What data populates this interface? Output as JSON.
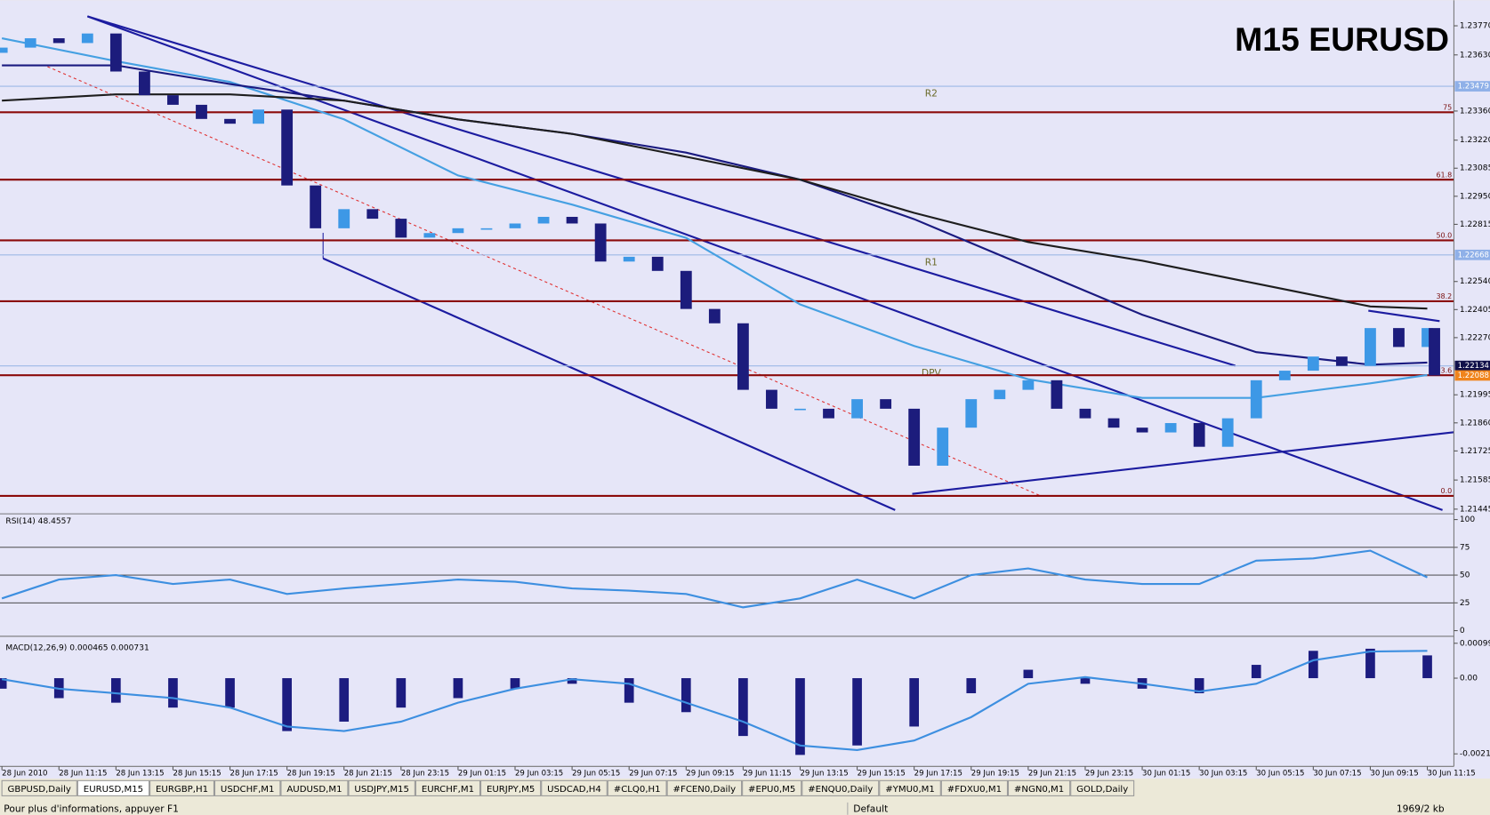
{
  "chart_data": [
    {
      "type": "candlestick",
      "title": "M15 EURUSD",
      "xlim": [
        -0.27,
        203.73
      ],
      "ylim": [
        1.21427,
        1.23884
      ],
      "xticks": [
        {
          "value": 0,
          "label": "28 Jun 2010"
        },
        {
          "value": 8,
          "label": "28 Jun 11:15"
        },
        {
          "value": 16,
          "label": "28 Jun 13:15"
        },
        {
          "value": 24,
          "label": "28 Jun 15:15"
        },
        {
          "value": 32,
          "label": "28 Jun 17:15"
        },
        {
          "value": 40,
          "label": "28 Jun 19:15"
        },
        {
          "value": 48,
          "label": "28 Jun 21:15"
        },
        {
          "value": 56,
          "label": "28 Jun 23:15"
        },
        {
          "value": 64,
          "label": "29 Jun 01:15"
        },
        {
          "value": 72,
          "label": "29 Jun 03:15"
        },
        {
          "value": 80,
          "label": "29 Jun 05:15"
        },
        {
          "value": 88,
          "label": "29 Jun 07:15"
        },
        {
          "value": 96,
          "label": "29 Jun 09:15"
        },
        {
          "value": 104,
          "label": "29 Jun 11:15"
        },
        {
          "value": 112,
          "label": "29 Jun 13:15"
        },
        {
          "value": 120,
          "label": "29 Jun 15:15"
        },
        {
          "value": 128,
          "label": "29 Jun 17:15"
        },
        {
          "value": 136,
          "label": "29 Jun 19:15"
        },
        {
          "value": 144,
          "label": "29 Jun 21:15"
        },
        {
          "value": 152,
          "label": "29 Jun 23:15"
        },
        {
          "value": 160,
          "label": "30 Jun 01:15"
        },
        {
          "value": 168,
          "label": "30 Jun 03:15"
        },
        {
          "value": 176,
          "label": "30 Jun 05:15"
        },
        {
          "value": 184,
          "label": "30 Jun 07:15"
        },
        {
          "value": 192,
          "label": "30 Jun 09:15"
        },
        {
          "value": 200,
          "label": "30 Jun 11:15"
        }
      ],
      "yticks": [
        {
          "value": 1.2377,
          "label": "1.23770"
        },
        {
          "value": 1.2363,
          "label": "1.23630"
        },
        {
          "value": 1.2336,
          "label": "1.23360"
        },
        {
          "value": 1.2322,
          "label": "1.23220"
        },
        1.23085,
        {
          "value": 1.2295,
          "label": "1.22950"
        },
        1.22815,
        {
          "value": 1.2254,
          "label": "1.22540"
        },
        1.22405,
        {
          "value": 1.2227,
          "label": "1.22270"
        },
        1.21995,
        {
          "value": 1.2186,
          "label": "1.21860"
        },
        1.21725,
        1.21585,
        1.21445
      ],
      "up_color": "#3d98e6",
      "down_color": "#1c1c7c",
      "x": [
        0,
        4,
        8,
        12,
        16,
        20,
        24,
        28,
        32,
        36,
        40,
        44,
        48,
        52,
        56,
        60,
        64,
        68,
        72,
        76,
        80,
        84,
        88,
        92,
        96,
        100,
        104,
        108,
        112,
        116,
        120,
        124,
        128,
        132,
        136,
        140,
        144,
        148,
        152,
        156,
        160,
        164,
        168,
        172,
        176,
        180,
        184,
        188,
        192,
        196,
        200,
        201
      ],
      "open": [
        1.2364,
        1.23665,
        1.2371,
        1.23687,
        1.23733,
        1.2355,
        1.23436,
        1.2339,
        1.23322,
        1.23299,
        1.23367,
        1.23002,
        1.22796,
        1.22888,
        1.22842,
        1.22751,
        1.22773,
        1.22796,
        1.22796,
        1.22819,
        1.22851,
        1.22819,
        1.22636,
        1.22659,
        1.22591,
        1.22408,
        1.22339,
        1.22019,
        1.21928,
        1.21928,
        1.21882,
        1.21974,
        1.21928,
        1.21654,
        1.21837,
        1.21974,
        1.22019,
        1.22065,
        1.21928,
        1.21882,
        1.21837,
        1.21814,
        1.21859,
        1.21745,
        1.21882,
        1.22065,
        1.22111,
        1.22179,
        1.22134,
        1.22316,
        1.22225,
        1.22316
      ],
      "close": [
        1.23665,
        1.2371,
        1.23687,
        1.23733,
        1.2355,
        1.23436,
        1.2339,
        1.23322,
        1.23299,
        1.23367,
        1.23002,
        1.22796,
        1.22888,
        1.22842,
        1.22751,
        1.22773,
        1.22796,
        1.22796,
        1.22819,
        1.22851,
        1.22819,
        1.22636,
        1.22659,
        1.22591,
        1.22408,
        1.22339,
        1.22019,
        1.21928,
        1.21928,
        1.21882,
        1.21974,
        1.21928,
        1.21654,
        1.21837,
        1.21974,
        1.22019,
        1.22065,
        1.21928,
        1.21882,
        1.21837,
        1.21814,
        1.21859,
        1.21745,
        1.21882,
        1.22065,
        1.22111,
        1.22179,
        1.22134,
        1.22316,
        1.22225,
        1.22316,
        1.22088
      ],
      "series": [
        {
          "color": "#45a0e2",
          "x": [
            0,
            16,
            32,
            48,
            64,
            80,
            96,
            112,
            128,
            144,
            160,
            176,
            192,
            200
          ],
          "values": [
            1.2371,
            1.236,
            1.235,
            1.2332,
            1.2305,
            1.2291,
            1.2275,
            1.2243,
            1.2223,
            1.2207,
            1.2198,
            1.2198,
            1.2205,
            1.2209
          ]
        },
        {
          "color": "#1a1a80",
          "x": [
            0,
            16,
            32,
            48,
            64,
            80,
            96,
            112,
            128,
            144,
            160,
            176,
            192,
            200
          ],
          "values": [
            1.2358,
            1.2358,
            1.2349,
            1.2341,
            1.2332,
            1.2325,
            1.2316,
            1.2303,
            1.2284,
            1.2261,
            1.2238,
            1.222,
            1.2214,
            1.2215
          ]
        },
        {
          "color": "#1e1e1e",
          "x": [
            0,
            16,
            32,
            48,
            64,
            80,
            96,
            112,
            128,
            144,
            160,
            176,
            192,
            200
          ],
          "values": [
            1.2341,
            1.2344,
            1.2344,
            1.2341,
            1.2332,
            1.2325,
            1.2314,
            1.2303,
            1.2287,
            1.2273,
            1.2264,
            1.2253,
            1.2242,
            1.2241
          ]
        }
      ],
      "fib_levels": [
        {
          "label": "75",
          "value": 1.23354
        },
        {
          "label": "61.8",
          "value": 1.2303
        },
        {
          "label": "50.0",
          "value": 1.22738
        },
        {
          "label": "38.2",
          "value": 1.22445
        },
        {
          "label": "23.6",
          "value": 1.22089
        },
        {
          "label": "0.0",
          "value": 1.21509
        }
      ],
      "fib_color": "#8b0a0a",
      "pivots": [
        {
          "label": "R2",
          "value": 1.23479
        },
        {
          "label": "R1",
          "value": 1.22668
        },
        {
          "label": "DPV",
          "value": 1.22134
        }
      ],
      "pivot_color": "#9db8e6",
      "price_tags": [
        {
          "value": 1.23479,
          "label": "1.23479",
          "color": "#8fb0e8"
        },
        {
          "value": 1.22668,
          "label": "1.22668",
          "color": "#8fb0e8"
        },
        {
          "value": 1.22134,
          "label": "1.22134",
          "color": "#10104a"
        },
        {
          "value": 1.22088,
          "label": "1.22088",
          "color": "#f0841c"
        }
      ]
    },
    {
      "type": "line",
      "title": "RSI(14) 48.4557",
      "xlim": [
        -0.27,
        203.73
      ],
      "ylim": [
        -3.4,
        104.3
      ],
      "yticks": [
        0,
        25,
        50,
        75,
        100
      ],
      "hlines": [
        25,
        50,
        75
      ],
      "series": [
        {
          "color": "#3d8fe0",
          "x": [
            0,
            8,
            16,
            24,
            32,
            40,
            48,
            56,
            64,
            72,
            80,
            88,
            96,
            104,
            112,
            120,
            128,
            136,
            144,
            152,
            160,
            168,
            176,
            184,
            192,
            200
          ],
          "values": [
            29,
            46,
            50,
            42,
            46,
            33,
            38,
            42,
            46,
            44,
            38,
            36,
            33,
            21,
            29,
            46,
            29,
            50,
            56,
            46,
            42,
            42,
            63,
            65,
            72,
            48
          ]
        }
      ]
    },
    {
      "type": "macd",
      "title": "MACD(12,26,9) 0.000465 0.000731",
      "xlim": [
        -0.27,
        203.73
      ],
      "ylim": [
        -0.00249,
        0.00114
      ],
      "yticks": [
        -0.00216,
        {
          "value": 0,
          "label": "0.00"
        },
        0.000996
      ],
      "color": "#1c1c80",
      "x": [
        0,
        8,
        16,
        24,
        32,
        40,
        48,
        56,
        64,
        72,
        80,
        88,
        96,
        104,
        112,
        120,
        128,
        136,
        144,
        152,
        160,
        168,
        176,
        184,
        192,
        200
      ],
      "values": [
        -0.0003,
        -0.00057,
        -0.0007,
        -0.00084,
        -0.00084,
        -0.00151,
        -0.00124,
        -0.00084,
        -0.00057,
        -0.0003,
        -0.00016,
        -0.0007,
        -0.00097,
        -0.00165,
        -0.00219,
        -0.00192,
        -0.00138,
        -0.00043,
        0.00024,
        -0.00016,
        -0.0003,
        -0.00043,
        0.00038,
        0.00078,
        0.00084,
        0.00065
      ],
      "series": [
        {
          "color": "#3d8fe0",
          "x": [
            0,
            8,
            16,
            24,
            32,
            40,
            48,
            56,
            64,
            72,
            80,
            88,
            96,
            104,
            112,
            120,
            128,
            136,
            144,
            152,
            160,
            168,
            176,
            184,
            192,
            200
          ],
          "values": [
            -3e-05,
            -0.0003,
            -0.00043,
            -0.00057,
            -0.00084,
            -0.00138,
            -0.00151,
            -0.00124,
            -0.0007,
            -0.0003,
            -3e-05,
            -0.00016,
            -0.0007,
            -0.00124,
            -0.00192,
            -0.00205,
            -0.00178,
            -0.00111,
            -0.00016,
            3e-05,
            -0.00016,
            -0.00038,
            -0.00016,
            0.00051,
            0.00076,
            0.00078
          ]
        }
      ]
    }
  ],
  "tabs": {
    "items": [
      "GBPUSD,Daily",
      "EURUSD,M15",
      "EURGBP,H1",
      "USDCHF,M1",
      "AUDUSD,M1",
      "USDJPY,M15",
      "EURCHF,M1",
      "EURJPY,M5",
      "USDCAD,H4",
      "#CLQ0,H1",
      "#FCEN0,Daily",
      "#EPU0,M5",
      "#ENQU0,Daily",
      "#YMU0,M1",
      "#FDXU0,M1",
      "#NGN0,M1",
      "GOLD,Daily"
    ],
    "active": 1
  },
  "status": {
    "help": "Pour plus d'informations, appuyer F1",
    "profile": "Default",
    "memory": "1969/2 kb"
  }
}
